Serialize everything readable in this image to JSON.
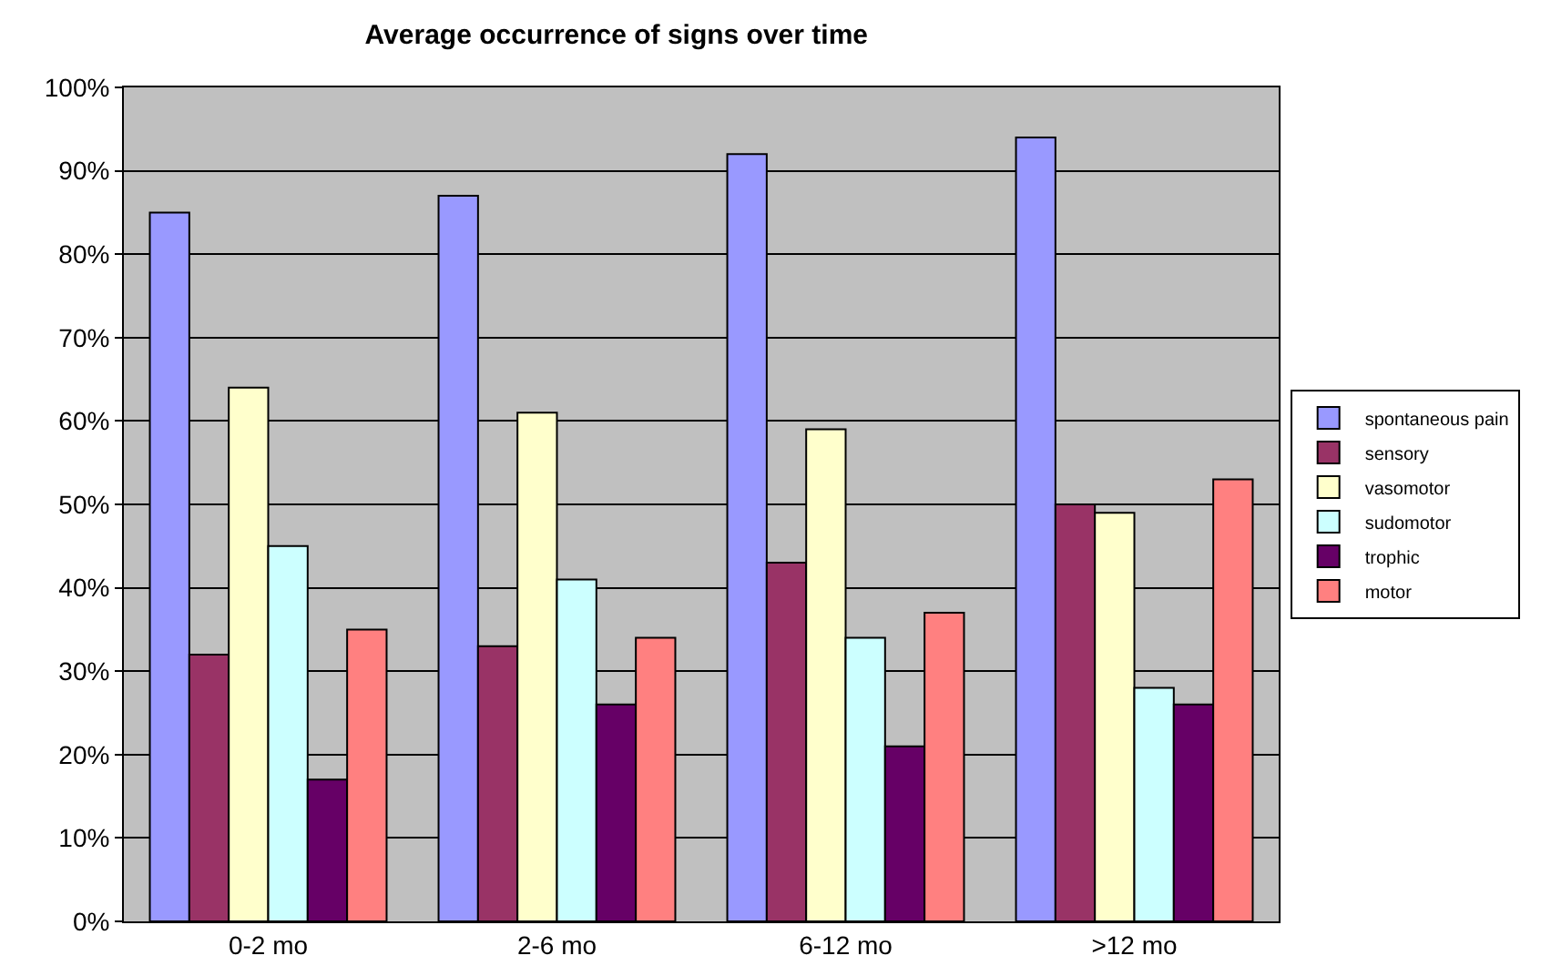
{
  "chart_data": {
    "type": "bar",
    "title": "Average occurrence of signs over time",
    "categories": [
      "0-2 mo",
      "2-6 mo",
      "6-12 mo",
      ">12 mo"
    ],
    "series": [
      {
        "name": "spontaneous pain",
        "color": "#9999ff",
        "values": [
          85,
          87,
          92,
          94
        ]
      },
      {
        "name": "sensory",
        "color": "#993366",
        "values": [
          32,
          33,
          43,
          50
        ]
      },
      {
        "name": "vasomotor",
        "color": "#ffffcc",
        "values": [
          64,
          61,
          59,
          49
        ]
      },
      {
        "name": "sudomotor",
        "color": "#ccffff",
        "values": [
          45,
          41,
          34,
          28
        ]
      },
      {
        "name": "trophic",
        "color": "#660066",
        "values": [
          17,
          26,
          21,
          26
        ]
      },
      {
        "name": "motor",
        "color": "#ff8080",
        "values": [
          35,
          34,
          37,
          53
        ]
      }
    ],
    "ylim": [
      0,
      100
    ],
    "yticks": [
      {
        "value": 0,
        "label": "0%"
      },
      {
        "value": 10,
        "label": "10%"
      },
      {
        "value": 20,
        "label": "20%"
      },
      {
        "value": 30,
        "label": "30%"
      },
      {
        "value": 40,
        "label": "40%"
      },
      {
        "value": 50,
        "label": "50%"
      },
      {
        "value": 60,
        "label": "60%"
      },
      {
        "value": 70,
        "label": "70%"
      },
      {
        "value": 80,
        "label": "80%"
      },
      {
        "value": 90,
        "label": "90%"
      },
      {
        "value": 100,
        "label": "100%"
      }
    ],
    "grid": "y",
    "legend": "right"
  }
}
